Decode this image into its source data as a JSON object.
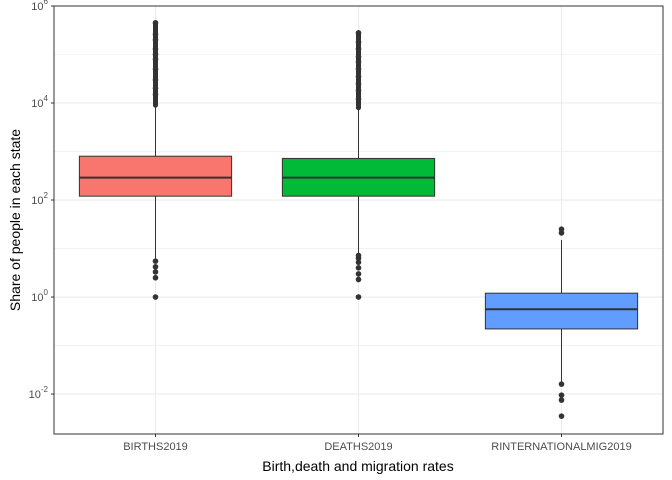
{
  "chart_data": {
    "type": "boxplot",
    "xlabel": "Birth,death and migration rates",
    "ylabel": "Share of people in each state",
    "y_scale": "log10",
    "ylim": [
      0.0015,
      1000000
    ],
    "y_ticks": [
      {
        "value": 0.01,
        "base": "10",
        "exp": "-2"
      },
      {
        "value": 1,
        "base": "10",
        "exp": "0"
      },
      {
        "value": 100,
        "base": "10",
        "exp": "2"
      },
      {
        "value": 10000,
        "base": "10",
        "exp": "4"
      },
      {
        "value": 1000000,
        "base": "10",
        "exp": "6"
      }
    ],
    "grid": true,
    "legend": "none",
    "categories": [
      "BIRTHS2019",
      "DEATHS2019",
      "RINTERNATIONALMIG2019"
    ],
    "boxes": [
      {
        "category": "BIRTHS2019",
        "color": "#F8766D",
        "whisker_low": 6,
        "q1": 120,
        "median": 290,
        "q3": 800,
        "whisker_high": 9000,
        "outliers_high_min": 9000,
        "outliers_high_max": 450000,
        "outliers": [
          1,
          2.5,
          3.3,
          4.2,
          5.5,
          15000,
          20000,
          30000,
          50000,
          80000,
          100000,
          130000,
          200000,
          260000,
          450000
        ]
      },
      {
        "category": "DEATHS2019",
        "color": "#00BA38",
        "whisker_low": 8,
        "q1": 120,
        "median": 290,
        "q3": 720,
        "whisker_high": 8000,
        "outliers_high_min": 8000,
        "outliers_high_max": 280000,
        "outliers": [
          1,
          2.3,
          3,
          4,
          5.2,
          6.3,
          7.2,
          12000,
          18000,
          25000,
          35000,
          50000,
          70000,
          90000,
          130000,
          180000,
          280000
        ]
      },
      {
        "category": "RINTERNATIONALMIG2019",
        "color": "#619CFF",
        "whisker_low": 0.018,
        "q1": 0.22,
        "median": 0.56,
        "q3": 1.2,
        "whisker_high": 15,
        "outliers": [
          0.0035,
          0.0075,
          0.0095,
          0.016,
          21,
          25
        ]
      }
    ]
  }
}
